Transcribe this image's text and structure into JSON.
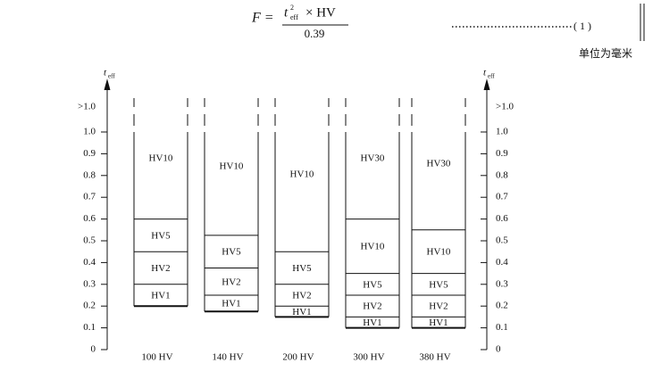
{
  "formula": {
    "lhs": "F =",
    "variable": "t",
    "subscript": "eff",
    "superscript": "2",
    "rest": "× HV",
    "denominator": "0.39",
    "number": "( 1 )"
  },
  "unit_note": "单位为毫米",
  "axis": {
    "label": "t",
    "label_sub": "eff",
    "over_label": ">1.0",
    "ticks": [
      0,
      0.1,
      0.2,
      0.3,
      0.4,
      0.5,
      0.6,
      0.7,
      0.8,
      0.9,
      {
        "value": 1,
        "label": "1.0"
      }
    ]
  },
  "columns": [
    {
      "label": "100 HV",
      "segments": [
        {
          "label": "HV1",
          "from": 0.2
        },
        {
          "label": "HV2",
          "from": 0.3
        },
        {
          "label": "HV5",
          "from": 0.45
        },
        {
          "label": "HV10",
          "from": 0.6
        }
      ]
    },
    {
      "label": "140 HV",
      "segments": [
        {
          "label": "HV1",
          "from": 0.175
        },
        {
          "label": "HV2",
          "from": 0.25
        },
        {
          "label": "HV5",
          "from": 0.375
        },
        {
          "label": "HV10",
          "from": 0.525
        }
      ]
    },
    {
      "label": "200 HV",
      "segments": [
        {
          "label": "HV1",
          "from": 0.15
        },
        {
          "label": "HV2",
          "from": 0.2
        },
        {
          "label": "HV5",
          "from": 0.3
        },
        {
          "label": "HV10",
          "from": 0.45
        }
      ]
    },
    {
      "label": "300 HV",
      "segments": [
        {
          "label": "HV1",
          "from": 0.1
        },
        {
          "label": "HV2",
          "from": 0.15
        },
        {
          "label": "HV5",
          "from": 0.25
        },
        {
          "label": "HV10",
          "from": 0.35
        },
        {
          "label": "HV30",
          "from": 0.6
        }
      ]
    },
    {
      "label": "380 HV",
      "segments": [
        {
          "label": "HV1",
          "from": 0.1
        },
        {
          "label": "HV2",
          "from": 0.15
        },
        {
          "label": "HV5",
          "from": 0.25
        },
        {
          "label": "HV10",
          "from": 0.35
        },
        {
          "label": "HV30",
          "from": 0.55
        }
      ]
    }
  ]
}
